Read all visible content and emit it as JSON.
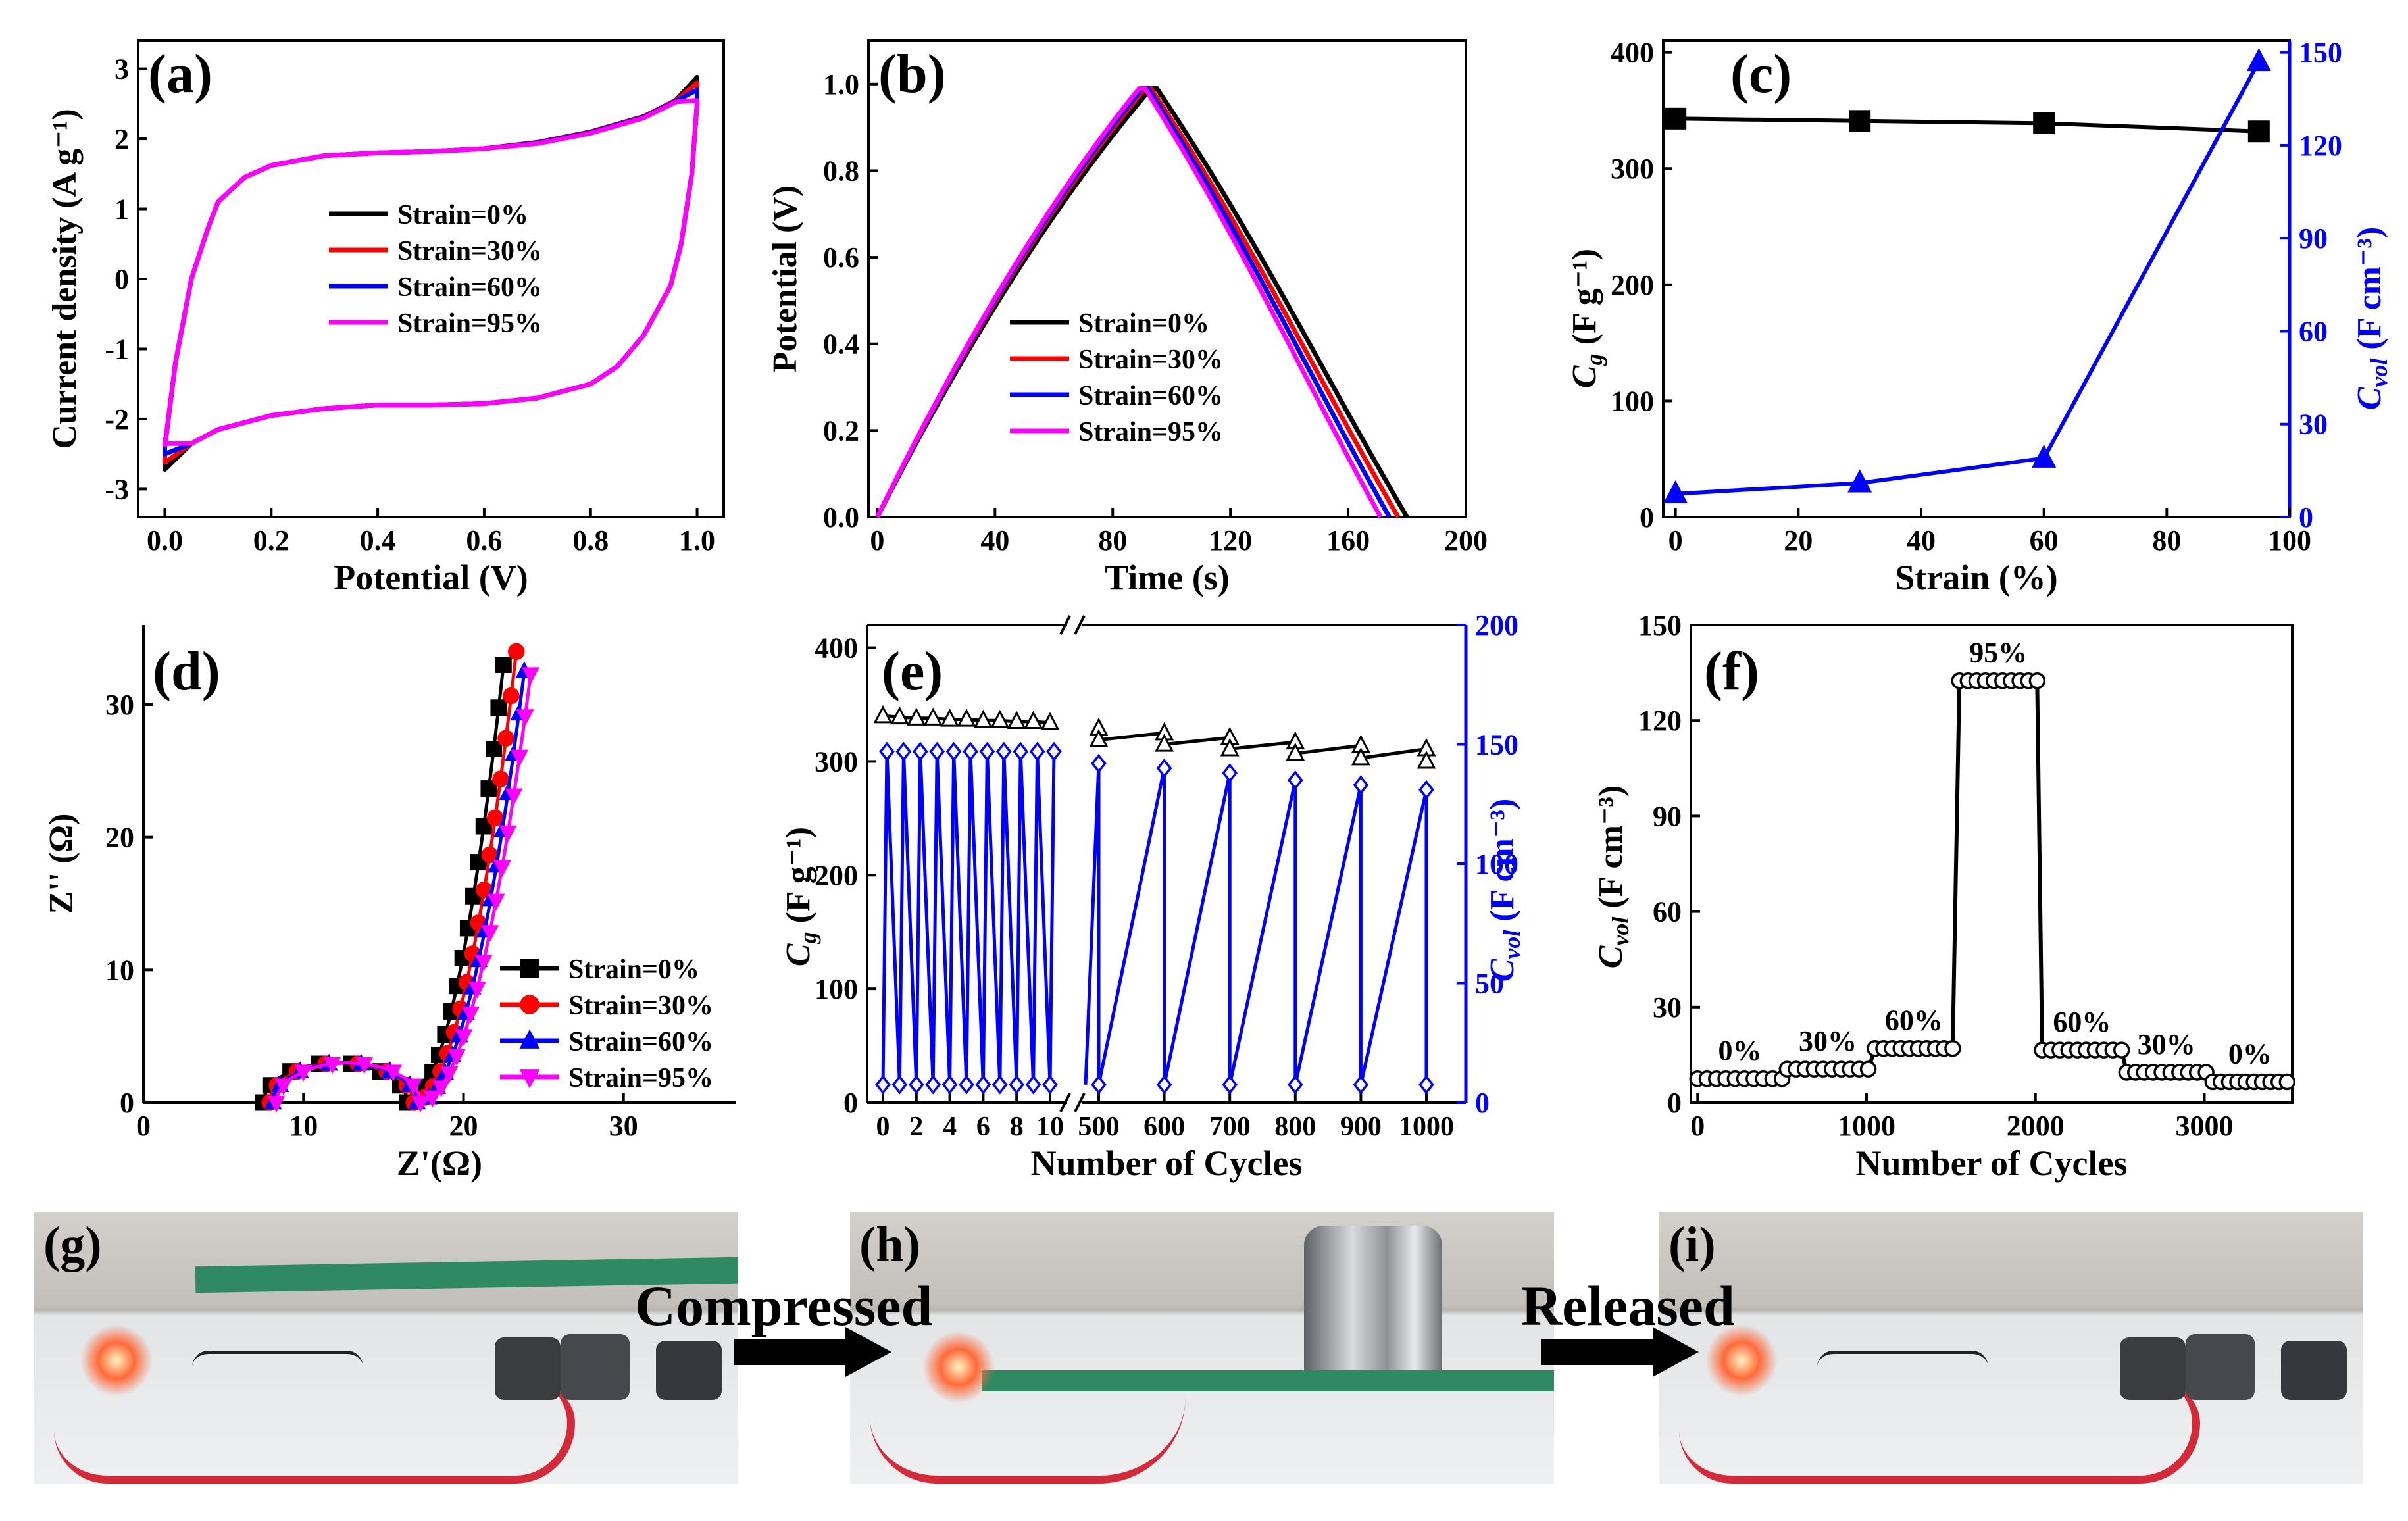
{
  "panels": {
    "a": {
      "label": "(a)",
      "type": "line",
      "xlabel": "Potential (V)",
      "ylabel": "Current density (A g⁻¹)",
      "xlim": [
        -0.05,
        1.05
      ],
      "ylim": [
        -3.4,
        3.4
      ],
      "xticks": [
        0.0,
        0.2,
        0.4,
        0.6,
        0.8,
        1.0
      ],
      "xticklabels": [
        "0.0",
        "0.2",
        "0.4",
        "0.6",
        "0.8",
        "1.0"
      ],
      "yticks": [
        -3,
        -2,
        -1,
        0,
        1,
        2,
        3
      ],
      "yticklabels": [
        "-3",
        "-2",
        "-1",
        "0",
        "1",
        "2",
        "3"
      ],
      "legend": [
        "Strain=0%",
        "Strain=30%",
        "Strain=60%",
        "Strain=95%"
      ],
      "series_meta": [
        {
          "name": "Strain=0%",
          "color": "#000000",
          "upper_end": 2.88,
          "lower_start": -2.72
        },
        {
          "name": "Strain=30%",
          "color": "#ff0000",
          "upper_end": 2.8,
          "lower_start": -2.62
        },
        {
          "name": "Strain=60%",
          "color": "#0000ff",
          "upper_end": 2.7,
          "lower_start": -2.5
        },
        {
          "name": "Strain=95%",
          "color": "#ff00ff",
          "upper_end": 2.55,
          "lower_start": -2.35
        }
      ],
      "shape": {
        "upper": [
          [
            0.0,
            -2.4
          ],
          [
            0.02,
            -1.2
          ],
          [
            0.05,
            0.0
          ],
          [
            0.08,
            0.7
          ],
          [
            0.1,
            1.1
          ],
          [
            0.15,
            1.45
          ],
          [
            0.2,
            1.62
          ],
          [
            0.3,
            1.76
          ],
          [
            0.4,
            1.8
          ],
          [
            0.5,
            1.82
          ],
          [
            0.6,
            1.86
          ],
          [
            0.7,
            1.95
          ],
          [
            0.8,
            2.1
          ],
          [
            0.9,
            2.32
          ],
          [
            0.96,
            2.55
          ],
          [
            1.0,
            2.85
          ]
        ],
        "lower": [
          [
            1.0,
            2.5
          ],
          [
            0.99,
            1.5
          ],
          [
            0.97,
            0.5
          ],
          [
            0.95,
            -0.1
          ],
          [
            0.9,
            -0.8
          ],
          [
            0.85,
            -1.25
          ],
          [
            0.8,
            -1.5
          ],
          [
            0.7,
            -1.7
          ],
          [
            0.6,
            -1.78
          ],
          [
            0.5,
            -1.8
          ],
          [
            0.4,
            -1.8
          ],
          [
            0.3,
            -1.85
          ],
          [
            0.2,
            -1.95
          ],
          [
            0.1,
            -2.15
          ],
          [
            0.05,
            -2.35
          ],
          [
            0.0,
            -2.7
          ]
        ]
      }
    },
    "b": {
      "label": "(b)",
      "type": "line",
      "xlabel": "Time (s)",
      "ylabel": "Potential (V)",
      "xlim": [
        -3,
        200
      ],
      "ylim": [
        0,
        1.1
      ],
      "xticks": [
        0,
        40,
        80,
        120,
        160,
        200
      ],
      "xticklabels": [
        "0",
        "40",
        "80",
        "120",
        "160",
        "200"
      ],
      "yticks": [
        0.0,
        0.2,
        0.4,
        0.6,
        0.8,
        1.0
      ],
      "yticklabels": [
        "0.0",
        "0.2",
        "0.4",
        "0.6",
        "0.8",
        "1.0"
      ],
      "legend": [
        "Strain=0%",
        "Strain=30%",
        "Strain=60%",
        "Strain=95%"
      ],
      "series": [
        {
          "name": "Strain=0%",
          "color": "#000000",
          "charge_time": 93,
          "discharge_end": 180
        },
        {
          "name": "Strain=30%",
          "color": "#ff0000",
          "charge_time": 91,
          "discharge_end": 177
        },
        {
          "name": "Strain=60%",
          "color": "#0000ff",
          "charge_time": 90,
          "discharge_end": 174
        },
        {
          "name": "Strain=95%",
          "color": "#ff00ff",
          "charge_time": 89,
          "discharge_end": 171
        }
      ]
    },
    "c": {
      "label": "(c)",
      "type": "line",
      "xlabel": "Strain (%)",
      "ylabel_left": "C",
      "ylabel_left_sub": "g",
      "ylabel_left_unit": " (F g⁻¹)",
      "ylabel_right": "C",
      "ylabel_right_sub": "vol",
      "ylabel_right_unit": " (F cm⁻³)",
      "xlim": [
        -2,
        100
      ],
      "ylim_left": [
        0,
        410
      ],
      "ylim_right": [
        0,
        153.75
      ],
      "xticks": [
        0,
        20,
        40,
        60,
        80,
        100
      ],
      "xticklabels": [
        "0",
        "20",
        "40",
        "60",
        "80",
        "100"
      ],
      "yticks_left": [
        0,
        100,
        200,
        300,
        400
      ],
      "yticklabels_left": [
        "0",
        "100",
        "200",
        "300",
        "400"
      ],
      "yticks_right": [
        0,
        30,
        60,
        90,
        120,
        150
      ],
      "yticklabels_right": [
        "0",
        "30",
        "60",
        "90",
        "120",
        "150"
      ],
      "x": [
        0,
        30,
        60,
        95
      ],
      "series": [
        {
          "name": "Cg",
          "axis": "left",
          "color": "#000000",
          "marker": "square",
          "values": [
            343,
            341,
            339,
            332
          ]
        },
        {
          "name": "Cvol",
          "axis": "right",
          "color": "#0000ff",
          "marker": "triangle",
          "values": [
            7.5,
            11,
            19,
            147
          ]
        }
      ]
    },
    "d": {
      "label": "(d)",
      "type": "scatter",
      "xlabel": "Z'(Ω)",
      "ylabel": "Z'' (Ω)",
      "xlim": [
        0,
        37
      ],
      "ylim": [
        0,
        36
      ],
      "xticks": [
        0,
        10,
        20,
        30
      ],
      "xticklabels": [
        "0",
        "10",
        "20",
        "30"
      ],
      "yticks": [
        0,
        10,
        20,
        30
      ],
      "yticklabels": [
        "0",
        "10",
        "20",
        "30"
      ],
      "legend": [
        "Strain=0%",
        "Strain=30%",
        "Strain=60%",
        "Strain=95%"
      ],
      "series": [
        {
          "name": "Strain=0%",
          "color": "#000000",
          "marker": "square",
          "offset": 0.0,
          "end": [
            22.5,
            33
          ]
        },
        {
          "name": "Strain=30%",
          "color": "#ff0000",
          "marker": "circle",
          "offset": 0.4,
          "end": [
            23.3,
            34
          ]
        },
        {
          "name": "Strain=60%",
          "color": "#0000ff",
          "marker": "triangle",
          "offset": 0.6,
          "end": [
            23.8,
            32.5
          ]
        },
        {
          "name": "Strain=95%",
          "color": "#ff00ff",
          "marker": "triangle-down",
          "offset": 0.8,
          "end": [
            24.2,
            32.3
          ]
        }
      ]
    },
    "e": {
      "label": "(e)",
      "type": "line",
      "xlabel": "Number of Cycles",
      "ylabel_left": "C",
      "ylabel_left_sub": "g",
      "ylabel_left_unit": " (F g⁻¹)",
      "ylabel_right": "C",
      "ylabel_right_sub": "vol",
      "ylabel_right_unit": " (F cm⁻³)",
      "ylim_left": [
        0,
        420
      ],
      "ylim_right": [
        0,
        200
      ],
      "yticks_left": [
        0,
        100,
        200,
        300,
        400
      ],
      "yticklabels_left": [
        "0",
        "100",
        "200",
        "300",
        "400"
      ],
      "yticks_right": [
        0,
        50,
        100,
        150,
        200
      ],
      "yticklabels_right": [
        "0",
        "50",
        "100",
        "150",
        "200"
      ],
      "xticklabels": [
        "0",
        "2",
        "4",
        "6",
        "8",
        "10",
        "500",
        "600",
        "700",
        "800",
        "900",
        "1000"
      ],
      "segment1": {
        "cycles": [
          0,
          1,
          2,
          3,
          4,
          5,
          6,
          7,
          8,
          9,
          10
        ],
        "cg": [
          340,
          339,
          338,
          338,
          337,
          337,
          336,
          336,
          335,
          335,
          334
        ],
        "cvol_high": [
          147,
          147,
          147,
          147,
          147,
          147,
          147,
          147,
          147,
          147,
          147
        ],
        "cvol_low": 7.5
      },
      "segment2": {
        "cycles": [
          500,
          600,
          700,
          800,
          900,
          1000
        ],
        "cg_high": [
          329,
          325,
          321,
          317,
          314,
          311
        ],
        "cg_low": [
          319,
          315,
          311,
          307,
          303,
          300
        ],
        "cvol_high": [
          142,
          140,
          138,
          135,
          133,
          131
        ],
        "cvol_low": 7.5
      }
    },
    "f": {
      "label": "(f)",
      "type": "scatter",
      "xlabel": "Number of Cycles",
      "ylabel": "C",
      "ylabel_sub": "vol",
      "ylabel_unit": " (F cm⁻³)",
      "xlim": [
        -40,
        3520
      ],
      "ylim": [
        0,
        150
      ],
      "xticks": [
        0,
        1000,
        2000,
        3000
      ],
      "xticklabels": [
        "0",
        "1000",
        "2000",
        "3000"
      ],
      "yticks": [
        0,
        30,
        60,
        90,
        120,
        150
      ],
      "yticklabels": [
        "0",
        "30",
        "60",
        "90",
        "120",
        "150"
      ],
      "segments": [
        {
          "label": "0%",
          "x_start": 0,
          "x_end": 500,
          "value": 7.5
        },
        {
          "label": "30%",
          "x_start": 530,
          "x_end": 1010,
          "value": 10.5
        },
        {
          "label": "60%",
          "x_start": 1050,
          "x_end": 1510,
          "value": 17
        },
        {
          "label": "95%",
          "x_start": 1550,
          "x_end": 2010,
          "value": 132.5
        },
        {
          "label": "60%",
          "x_start": 2040,
          "x_end": 2510,
          "value": 16.5
        },
        {
          "label": "30%",
          "x_start": 2540,
          "x_end": 3010,
          "value": 9.5
        },
        {
          "label": "0%",
          "x_start": 3050,
          "x_end": 3490,
          "value": 6.5
        }
      ]
    }
  },
  "photos": {
    "g": {
      "label": "(g)"
    },
    "h": {
      "label": "(h)"
    },
    "i": {
      "label": "(i)"
    },
    "arrow1": "Compressed",
    "arrow2": "Released"
  }
}
